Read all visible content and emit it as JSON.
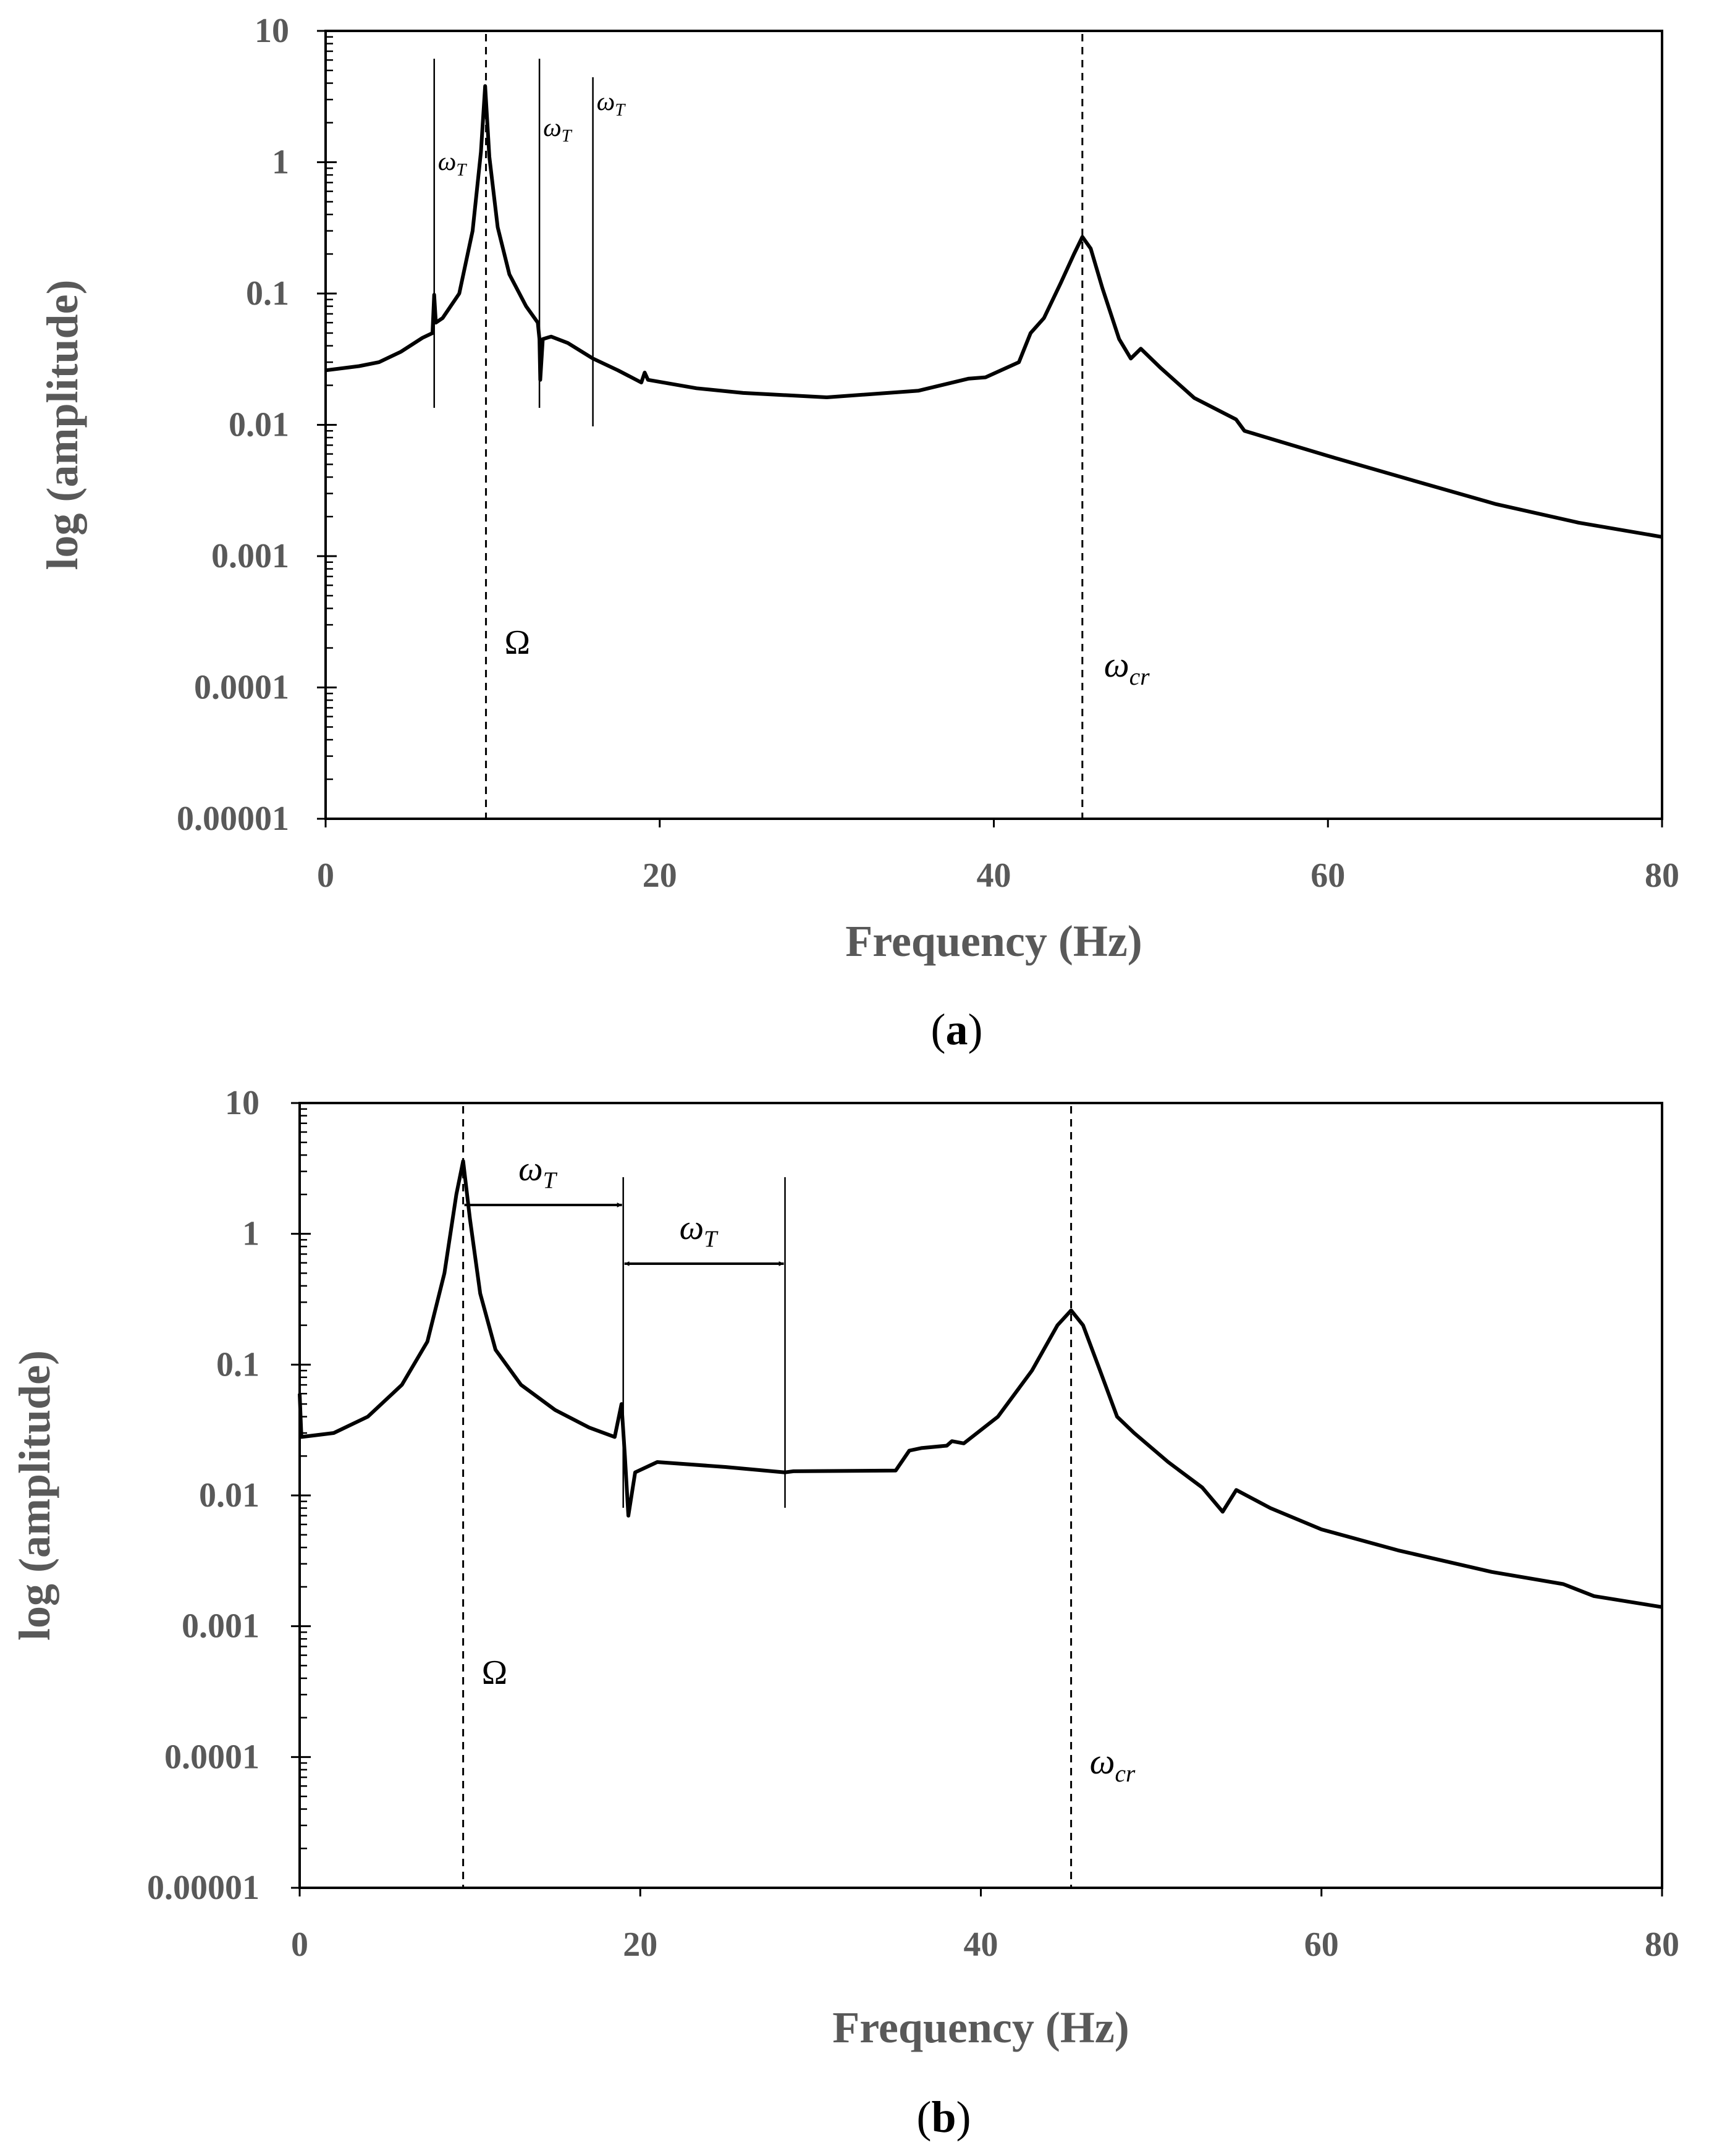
{
  "chart_data": [
    {
      "type": "line",
      "panel_label": "a",
      "xlabel": "Frequency (Hz)",
      "ylabel": "log (amplitude)",
      "xlim": [
        0,
        80
      ],
      "ylim": [
        1e-05,
        10
      ],
      "yscale": "log",
      "x_ticks": [
        "0",
        "20",
        "40",
        "60",
        "80"
      ],
      "y_ticks": [
        "10",
        "1",
        "0.1",
        "0.01",
        "0.001",
        "0.0001",
        "0.00001"
      ],
      "series": [
        {
          "name": "amplitude",
          "points": [
            [
              0,
              0.026
            ],
            [
              2,
              0.028
            ],
            [
              3.2,
              0.03
            ],
            [
              4.5,
              0.036
            ],
            [
              5.8,
              0.046
            ],
            [
              6.4,
              0.05
            ],
            [
              6.5,
              0.098
            ],
            [
              6.6,
              0.06
            ],
            [
              7,
              0.065
            ],
            [
              8,
              0.1
            ],
            [
              8.8,
              0.3
            ],
            [
              9.3,
              1.2
            ],
            [
              9.55,
              3.8
            ],
            [
              9.8,
              1.1
            ],
            [
              10.3,
              0.32
            ],
            [
              11,
              0.14
            ],
            [
              12,
              0.08
            ],
            [
              12.7,
              0.06
            ],
            [
              12.8,
              0.045
            ],
            [
              12.85,
              0.022
            ],
            [
              13,
              0.045
            ],
            [
              13.5,
              0.047
            ],
            [
              14.5,
              0.042
            ],
            [
              16,
              0.032
            ],
            [
              17.5,
              0.026
            ],
            [
              18.9,
              0.021
            ],
            [
              19.1,
              0.025
            ],
            [
              19.3,
              0.022
            ],
            [
              22.2,
              0.019
            ],
            [
              25,
              0.0175
            ],
            [
              30,
              0.0162
            ],
            [
              35.5,
              0.0182
            ],
            [
              38.5,
              0.0225
            ],
            [
              39.5,
              0.023
            ],
            [
              41.5,
              0.03
            ],
            [
              42.2,
              0.05
            ],
            [
              43,
              0.065
            ],
            [
              44,
              0.12
            ],
            [
              44.8,
              0.2
            ],
            [
              45.3,
              0.27
            ],
            [
              45.8,
              0.22
            ],
            [
              46.5,
              0.11
            ],
            [
              47.5,
              0.045
            ],
            [
              48.2,
              0.032
            ],
            [
              48.8,
              0.038
            ],
            [
              50,
              0.027
            ],
            [
              52,
              0.016
            ],
            [
              54.5,
              0.011
            ],
            [
              55,
              0.009
            ],
            [
              60,
              0.0058
            ],
            [
              65,
              0.0038
            ],
            [
              70,
              0.0025
            ],
            [
              75,
              0.0018
            ],
            [
              80,
              0.0014
            ]
          ]
        }
      ],
      "vertical_markers": [
        {
          "x": 9.6,
          "style": "dashed",
          "label": "Ω"
        },
        {
          "x": 45.3,
          "style": "dashed",
          "label_base": "ω",
          "label_sub": "cr"
        },
        {
          "x": 6.5,
          "style": "solid",
          "label_base": "ω",
          "label_sub": "T"
        },
        {
          "x": 12.8,
          "style": "solid",
          "label_base": "ω",
          "label_sub": "T"
        },
        {
          "x": 16,
          "style": "solid",
          "label_base": "ω",
          "label_sub": "T"
        }
      ]
    },
    {
      "type": "line",
      "panel_label": "b",
      "xlabel": "Frequency (Hz)",
      "ylabel": "log (amplitude)",
      "xlim": [
        0,
        80
      ],
      "ylim": [
        1e-05,
        10
      ],
      "yscale": "log",
      "x_ticks": [
        "0",
        "20",
        "40",
        "60",
        "80"
      ],
      "y_ticks": [
        "10",
        "1",
        "0.1",
        "0.01",
        "0.001",
        "0.0001",
        "0.00001"
      ],
      "series": [
        {
          "name": "amplitude",
          "points": [
            [
              0,
              0.06
            ],
            [
              0.1,
              0.028
            ],
            [
              2,
              0.03
            ],
            [
              4,
              0.04
            ],
            [
              6,
              0.07
            ],
            [
              7.5,
              0.15
            ],
            [
              8.5,
              0.5
            ],
            [
              9.2,
              2.0
            ],
            [
              9.6,
              3.6
            ],
            [
              10,
              1.3
            ],
            [
              10.6,
              0.35
            ],
            [
              11.5,
              0.13
            ],
            [
              13,
              0.07
            ],
            [
              15,
              0.045
            ],
            [
              17,
              0.033
            ],
            [
              18.5,
              0.028
            ],
            [
              18.9,
              0.05
            ],
            [
              19.1,
              0.02
            ],
            [
              19.3,
              0.007
            ],
            [
              19.7,
              0.015
            ],
            [
              21,
              0.018
            ],
            [
              25,
              0.0165
            ],
            [
              28.5,
              0.015
            ],
            [
              29,
              0.0153
            ],
            [
              35,
              0.0155
            ],
            [
              35.8,
              0.022
            ],
            [
              36.5,
              0.023
            ],
            [
              38,
              0.024
            ],
            [
              38.3,
              0.026
            ],
            [
              39,
              0.025
            ],
            [
              41,
              0.04
            ],
            [
              43,
              0.09
            ],
            [
              44.5,
              0.2
            ],
            [
              45.3,
              0.26
            ],
            [
              46,
              0.2
            ],
            [
              47,
              0.09
            ],
            [
              48,
              0.04
            ],
            [
              49,
              0.03
            ],
            [
              51,
              0.018
            ],
            [
              53,
              0.0115
            ],
            [
              54.2,
              0.0075
            ],
            [
              55,
              0.011
            ],
            [
              57,
              0.008
            ],
            [
              60,
              0.0055
            ],
            [
              64.5,
              0.0038
            ],
            [
              70,
              0.0026
            ],
            [
              74.2,
              0.0021
            ],
            [
              76,
              0.0017
            ],
            [
              80,
              0.0014
            ]
          ]
        }
      ],
      "vertical_markers": [
        {
          "x": 9.6,
          "style": "dashed",
          "label": "Ω"
        },
        {
          "x": 45.3,
          "style": "dashed",
          "label_base": "ω",
          "label_sub": "cr"
        },
        {
          "x": 19.0,
          "style": "solid"
        },
        {
          "x": 28.5,
          "style": "solid"
        }
      ],
      "spacing_arrows": [
        {
          "from": 9.6,
          "to": 19.0,
          "label_base": "ω",
          "label_sub": "T"
        },
        {
          "from": 19.0,
          "to": 28.5,
          "label_base": "ω",
          "label_sub": "T"
        }
      ]
    }
  ]
}
